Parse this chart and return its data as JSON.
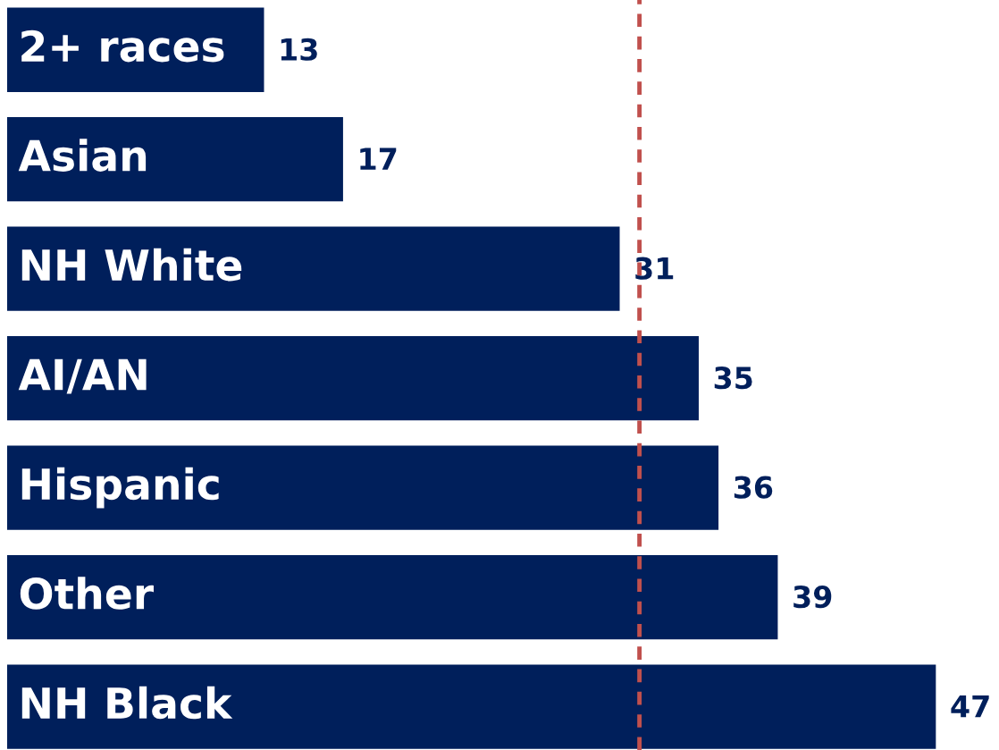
{
  "chart_data": {
    "type": "bar",
    "orientation": "horizontal",
    "categories": [
      "2+ races",
      "Asian",
      "NH White",
      "AI/AN",
      "Hispanic",
      "Other",
      "NH Black"
    ],
    "values": [
      13,
      17,
      31,
      35,
      36,
      39,
      47
    ],
    "color": "#001f5b",
    "data_labels": true,
    "ref_lines": [
      {
        "axis": "x",
        "value": 32,
        "color": "#c0504d",
        "line_style": "dashed"
      }
    ],
    "legend": false
  }
}
